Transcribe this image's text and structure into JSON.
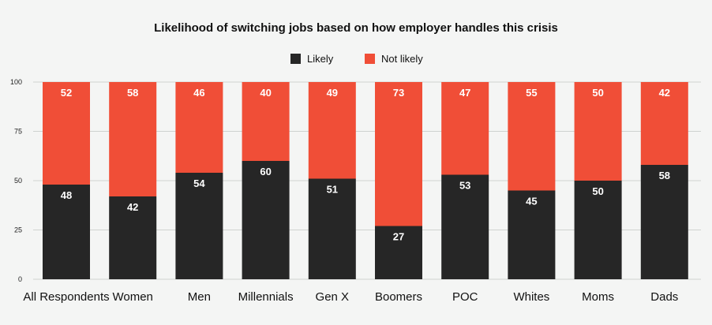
{
  "chart_data": {
    "type": "bar",
    "stacked": true,
    "title": "Likelihood of switching jobs based on how employer handles this crisis",
    "categories": [
      "All Respondents",
      "Women",
      "Men",
      "Millennials",
      "Gen X",
      "Boomers",
      "POC",
      "Whites",
      "Moms",
      "Dads"
    ],
    "series": [
      {
        "name": "Likely",
        "color": "#262626",
        "values": [
          48,
          42,
          54,
          60,
          51,
          27,
          53,
          45,
          50,
          58
        ]
      },
      {
        "name": "Not likely",
        "color": "#f04e37",
        "values": [
          52,
          58,
          46,
          40,
          49,
          73,
          47,
          55,
          50,
          42
        ]
      }
    ],
    "ylim": [
      0,
      100
    ],
    "yticks": [
      0,
      25,
      50,
      75,
      100
    ],
    "grid": true,
    "legend": "top-center",
    "xlabel": "",
    "ylabel": ""
  }
}
